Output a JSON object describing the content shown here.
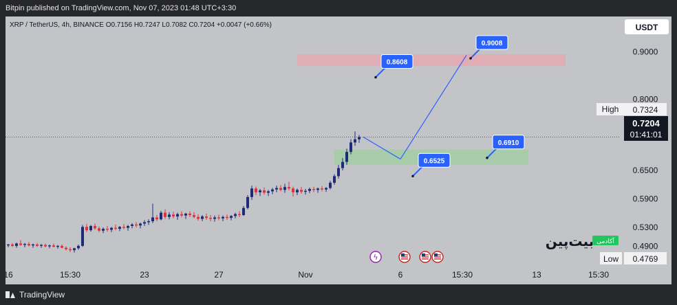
{
  "header": {
    "publisher_line": "Bitpin published on TradingView.com, Nov 07, 2023 01:48 UTC+3:30"
  },
  "footer": {
    "brand": "TradingView"
  },
  "symbol_bar": {
    "symbol": "XRP / TetherUS, 4h, BINANCE",
    "open": "O0.7156",
    "high": "H0.7247",
    "low": "L0.7082",
    "close": "C0.7204",
    "change": "+0.0047 (+0.66%)"
  },
  "currency": "USDT",
  "watermark": {
    "text": "بیت‌پین",
    "badge": "آکادمی"
  },
  "colors": {
    "up": "#1e2a78",
    "down": "#e0323a",
    "projection": "#2962ff",
    "resistance_zone": "#e9a6ad",
    "support_zone": "#9fcf9f",
    "label_bg": "#2962ff"
  },
  "chart_data": {
    "type": "candlestick",
    "symbol": "XRP/USDT",
    "interval": "4h",
    "ylim": [
      0.475,
      0.96
    ],
    "y_ticks": [
      "0.9000",
      "0.8000",
      "0.6500",
      "0.5900",
      "0.5300",
      "0.4900"
    ],
    "y_tick_values": [
      0.9,
      0.8,
      0.65,
      0.59,
      0.53,
      0.49
    ],
    "x_ticks": [
      "16",
      "15:30",
      "23",
      "27",
      "Nov",
      "6",
      "15:30",
      "13",
      "15:30"
    ],
    "x_tick_index": [
      0,
      15,
      33,
      51,
      72,
      95,
      110,
      128,
      143
    ],
    "high_label": "High",
    "high_value": "0.7324",
    "low_label": "Low",
    "low_value": "0.4769",
    "last_price": "0.7204",
    "countdown": "01:41:01",
    "candles": [
      [
        0.492,
        0.495,
        0.488,
        0.494
      ],
      [
        0.494,
        0.497,
        0.489,
        0.491
      ],
      [
        0.491,
        0.498,
        0.487,
        0.496
      ],
      [
        0.496,
        0.503,
        0.491,
        0.493
      ],
      [
        0.493,
        0.497,
        0.488,
        0.495
      ],
      [
        0.495,
        0.499,
        0.49,
        0.492
      ],
      [
        0.492,
        0.496,
        0.487,
        0.494
      ],
      [
        0.494,
        0.497,
        0.489,
        0.491
      ],
      [
        0.491,
        0.495,
        0.487,
        0.493
      ],
      [
        0.493,
        0.496,
        0.488,
        0.49
      ],
      [
        0.49,
        0.494,
        0.486,
        0.492
      ],
      [
        0.492,
        0.496,
        0.488,
        0.489
      ],
      [
        0.489,
        0.493,
        0.485,
        0.491
      ],
      [
        0.491,
        0.494,
        0.486,
        0.487
      ],
      [
        0.487,
        0.49,
        0.481,
        0.484
      ],
      [
        0.484,
        0.488,
        0.478,
        0.482
      ],
      [
        0.482,
        0.487,
        0.477,
        0.486
      ],
      [
        0.486,
        0.494,
        0.483,
        0.491
      ],
      [
        0.491,
        0.535,
        0.489,
        0.531
      ],
      [
        0.531,
        0.537,
        0.52,
        0.524
      ],
      [
        0.524,
        0.535,
        0.521,
        0.533
      ],
      [
        0.533,
        0.538,
        0.525,
        0.528
      ],
      [
        0.528,
        0.532,
        0.52,
        0.523
      ],
      [
        0.523,
        0.53,
        0.518,
        0.527
      ],
      [
        0.527,
        0.533,
        0.521,
        0.525
      ],
      [
        0.525,
        0.531,
        0.52,
        0.529
      ],
      [
        0.529,
        0.536,
        0.524,
        0.527
      ],
      [
        0.527,
        0.533,
        0.522,
        0.531
      ],
      [
        0.531,
        0.537,
        0.526,
        0.529
      ],
      [
        0.529,
        0.535,
        0.523,
        0.533
      ],
      [
        0.533,
        0.539,
        0.528,
        0.536
      ],
      [
        0.536,
        0.541,
        0.53,
        0.534
      ],
      [
        0.534,
        0.54,
        0.528,
        0.538
      ],
      [
        0.538,
        0.545,
        0.533,
        0.541
      ],
      [
        0.541,
        0.547,
        0.535,
        0.543
      ],
      [
        0.543,
        0.58,
        0.539,
        0.551
      ],
      [
        0.551,
        0.556,
        0.543,
        0.547
      ],
      [
        0.547,
        0.565,
        0.545,
        0.561
      ],
      [
        0.561,
        0.568,
        0.548,
        0.552
      ],
      [
        0.552,
        0.562,
        0.547,
        0.557
      ],
      [
        0.557,
        0.563,
        0.549,
        0.553
      ],
      [
        0.553,
        0.561,
        0.546,
        0.558
      ],
      [
        0.558,
        0.564,
        0.551,
        0.555
      ],
      [
        0.555,
        0.561,
        0.548,
        0.559
      ],
      [
        0.559,
        0.564,
        0.552,
        0.556
      ],
      [
        0.556,
        0.562,
        0.549,
        0.552
      ],
      [
        0.552,
        0.558,
        0.544,
        0.548
      ],
      [
        0.548,
        0.556,
        0.543,
        0.553
      ],
      [
        0.553,
        0.559,
        0.546,
        0.55
      ],
      [
        0.55,
        0.556,
        0.543,
        0.548
      ],
      [
        0.548,
        0.555,
        0.542,
        0.551
      ],
      [
        0.551,
        0.557,
        0.545,
        0.549
      ],
      [
        0.549,
        0.555,
        0.543,
        0.552
      ],
      [
        0.552,
        0.557,
        0.546,
        0.55
      ],
      [
        0.55,
        0.556,
        0.545,
        0.554
      ],
      [
        0.554,
        0.561,
        0.549,
        0.558
      ],
      [
        0.558,
        0.564,
        0.552,
        0.556
      ],
      [
        0.556,
        0.575,
        0.554,
        0.571
      ],
      [
        0.571,
        0.598,
        0.568,
        0.594
      ],
      [
        0.594,
        0.618,
        0.588,
        0.612
      ],
      [
        0.612,
        0.616,
        0.598,
        0.604
      ],
      [
        0.604,
        0.611,
        0.596,
        0.608
      ],
      [
        0.608,
        0.614,
        0.599,
        0.603
      ],
      [
        0.603,
        0.609,
        0.596,
        0.606
      ],
      [
        0.606,
        0.613,
        0.6,
        0.61
      ],
      [
        0.61,
        0.618,
        0.604,
        0.613
      ],
      [
        0.613,
        0.619,
        0.606,
        0.609
      ],
      [
        0.609,
        0.622,
        0.603,
        0.615
      ],
      [
        0.615,
        0.626,
        0.608,
        0.612
      ],
      [
        0.612,
        0.616,
        0.595,
        0.604
      ],
      [
        0.604,
        0.612,
        0.598,
        0.609
      ],
      [
        0.609,
        0.615,
        0.601,
        0.605
      ],
      [
        0.605,
        0.611,
        0.599,
        0.607
      ],
      [
        0.607,
        0.614,
        0.602,
        0.611
      ],
      [
        0.611,
        0.616,
        0.604,
        0.609
      ],
      [
        0.609,
        0.614,
        0.603,
        0.612
      ],
      [
        0.612,
        0.617,
        0.606,
        0.61
      ],
      [
        0.61,
        0.615,
        0.605,
        0.613
      ],
      [
        0.613,
        0.628,
        0.61,
        0.624
      ],
      [
        0.624,
        0.642,
        0.62,
        0.638
      ],
      [
        0.638,
        0.662,
        0.633,
        0.655
      ],
      [
        0.655,
        0.676,
        0.65,
        0.668
      ],
      [
        0.668,
        0.696,
        0.662,
        0.689
      ],
      [
        0.689,
        0.716,
        0.684,
        0.709
      ],
      [
        0.709,
        0.7324,
        0.702,
        0.7156
      ],
      [
        0.7156,
        0.7247,
        0.7082,
        0.7204
      ]
    ],
    "zones": [
      {
        "name": "resistance",
        "y0": 0.87,
        "y1": 0.895,
        "from_index": 70,
        "to_index": 135
      },
      {
        "name": "support",
        "y0": 0.662,
        "y1": 0.694,
        "from_index": 79,
        "to_index": 126
      }
    ],
    "projection": [
      [
        86,
        0.7204
      ],
      [
        95,
        0.674
      ],
      [
        111,
        0.893
      ]
    ],
    "price_labels": [
      {
        "text": "0.8608",
        "index": 89,
        "value": 0.8608
      },
      {
        "text": "0.9008",
        "index": 112,
        "value": 0.9008
      },
      {
        "text": "0.6910",
        "index": 116,
        "value": 0.691
      },
      {
        "text": "0.6525",
        "index": 98,
        "value": 0.6525
      }
    ],
    "event_markers": [
      {
        "symbol": "ϟ",
        "index": 89,
        "kind": "dividend"
      },
      {
        "symbol": "US",
        "index": 96,
        "kind": "economic"
      },
      {
        "symbol": "US",
        "index": 101,
        "kind": "economic"
      },
      {
        "symbol": "US",
        "index": 104,
        "kind": "economic"
      }
    ]
  }
}
